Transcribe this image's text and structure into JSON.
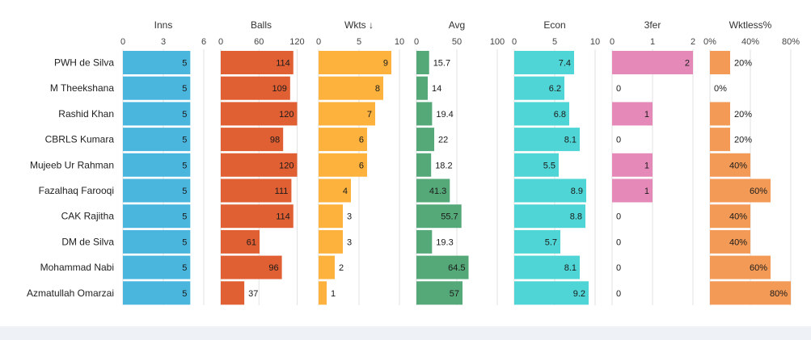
{
  "chart_data": {
    "type": "bar",
    "categories": [
      "PWH de Silva",
      "M Theekshana",
      "Rashid Khan",
      "CBRLS Kumara",
      "Mujeeb Ur Rahman",
      "Fazalhaq Farooqi",
      "CAK Rajitha",
      "DM de Silva",
      "Mohammad Nabi",
      "Azmatullah Omarzai"
    ],
    "panels": [
      {
        "title": "Inns",
        "ticks": [
          "0",
          "3",
          "6"
        ],
        "tick_values": [
          0,
          3,
          6
        ],
        "max": 6,
        "color": "#4ab6de",
        "values": [
          5,
          5,
          5,
          5,
          5,
          5,
          5,
          5,
          5,
          5
        ],
        "labels": [
          "5",
          "5",
          "5",
          "5",
          "5",
          "5",
          "5",
          "5",
          "5",
          "5"
        ]
      },
      {
        "title": "Balls",
        "ticks": [
          "0",
          "60",
          "120"
        ],
        "tick_values": [
          0,
          60,
          120
        ],
        "max": 127,
        "color": "#e05f33",
        "values": [
          114,
          109,
          120,
          98,
          120,
          111,
          114,
          61,
          96,
          37
        ],
        "labels": [
          "114",
          "109",
          "120",
          "98",
          "120",
          "111",
          "114",
          "61",
          "96",
          "37"
        ]
      },
      {
        "title": "Wkts ↓",
        "ticks": [
          "0",
          "5",
          "10"
        ],
        "tick_values": [
          0,
          5,
          10
        ],
        "max": 10,
        "color": "#fdb23e",
        "values": [
          9,
          8,
          7,
          6,
          6,
          4,
          3,
          3,
          2,
          1
        ],
        "labels": [
          "9",
          "8",
          "7",
          "6",
          "6",
          "4",
          "3",
          "3",
          "2",
          "1"
        ]
      },
      {
        "title": "Avg",
        "ticks": [
          "0",
          "50",
          "100"
        ],
        "tick_values": [
          0,
          50,
          100
        ],
        "max": 100,
        "color": "#55a878",
        "values": [
          15.7,
          14,
          19.4,
          22,
          18.2,
          41.3,
          55.7,
          19.3,
          64.5,
          57
        ],
        "labels": [
          "15.7",
          "14",
          "19.4",
          "22",
          "18.2",
          "41.3",
          "55.7",
          "19.3",
          "64.5",
          "57"
        ]
      },
      {
        "title": "Econ",
        "ticks": [
          "0",
          "5",
          "10"
        ],
        "tick_values": [
          0,
          5,
          10
        ],
        "max": 10,
        "color": "#4fd5d5",
        "values": [
          7.4,
          6.2,
          6.8,
          8.1,
          5.5,
          8.9,
          8.8,
          5.7,
          8.1,
          9.2
        ],
        "labels": [
          "7.4",
          "6.2",
          "6.8",
          "8.1",
          "5.5",
          "8.9",
          "8.8",
          "5.7",
          "8.1",
          "9.2"
        ]
      },
      {
        "title": "3fer",
        "ticks": [
          "0",
          "1",
          "2"
        ],
        "tick_values": [
          0,
          1,
          2
        ],
        "max": 2,
        "color": "#e58ab8",
        "values": [
          2,
          0,
          1,
          0,
          1,
          1,
          0,
          0,
          0,
          0
        ],
        "labels": [
          "2",
          "0",
          "1",
          "0",
          "1",
          "1",
          "0",
          "0",
          "0",
          "0"
        ]
      },
      {
        "title": "Wktless%",
        "ticks": [
          "0%",
          "40%",
          "80%"
        ],
        "tick_values": [
          0,
          40,
          80
        ],
        "max": 80,
        "color": "#f39a56",
        "values": [
          20,
          0,
          20,
          20,
          40,
          60,
          40,
          40,
          60,
          80
        ],
        "labels": [
          "20%",
          "0%",
          "20%",
          "20%",
          "40%",
          "60%",
          "40%",
          "40%",
          "60%",
          "80%"
        ]
      }
    ]
  }
}
